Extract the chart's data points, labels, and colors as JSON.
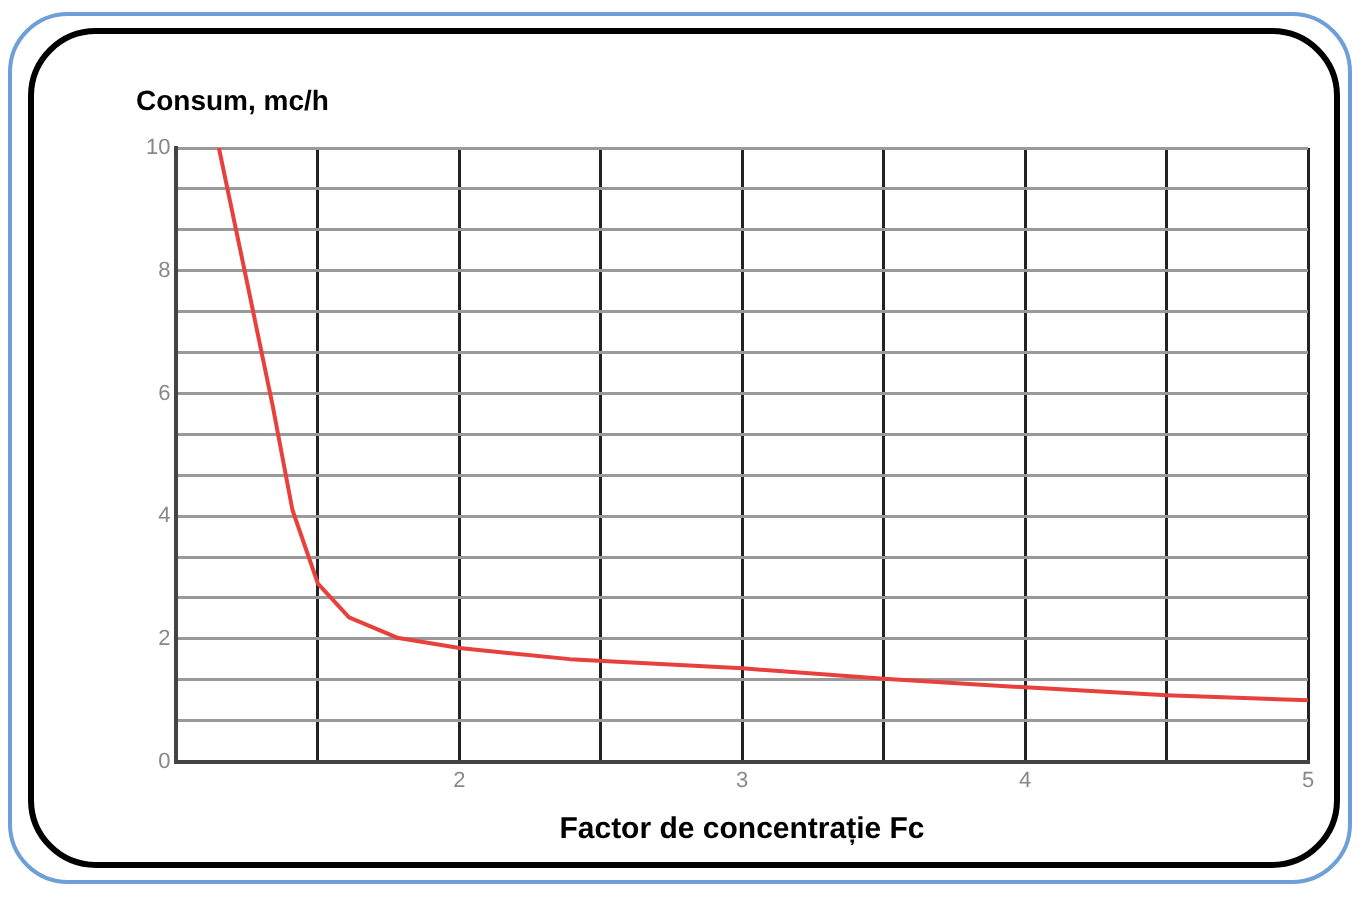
{
  "chart_data": {
    "type": "line",
    "ylabel": "Consum, mc/h",
    "xlabel": "Factor de concentrație Fc",
    "x": [
      1.15,
      1.25,
      1.34,
      1.41,
      1.5,
      1.61,
      1.78,
      2,
      2.39,
      2.88,
      3,
      3.5,
      4,
      4.5,
      5
    ],
    "series": [
      {
        "color": "#e8403c",
        "values": [
          10,
          7.8,
          5.8,
          4.1,
          2.9,
          2.35,
          2.02,
          1.85,
          1.67,
          1.55,
          1.52,
          1.35,
          1.21,
          1.08,
          1.0
        ]
      }
    ],
    "xlim": [
      1,
      5
    ],
    "xticks": [
      {
        "value": 1.5,
        "label": null
      },
      2,
      {
        "value": 2.5,
        "label": null
      },
      3,
      {
        "value": 3.5,
        "label": null
      },
      4,
      {
        "value": 4.5,
        "label": null
      },
      5
    ],
    "ylim": [
      0,
      10
    ],
    "yticks": [
      0,
      {
        "value": 0.667,
        "label": null
      },
      {
        "value": 1.333,
        "label": null
      },
      2,
      {
        "value": 2.667,
        "label": null
      },
      {
        "value": 3.333,
        "label": null
      },
      4,
      {
        "value": 4.667,
        "label": null
      },
      {
        "value": 5.333,
        "label": null
      },
      6,
      {
        "value": 6.667,
        "label": null
      },
      {
        "value": 7.333,
        "label": null
      },
      8,
      {
        "value": 8.667,
        "label": null
      },
      {
        "value": 9.333,
        "label": null
      },
      10
    ],
    "grid": true,
    "legend": false,
    "marker": "none",
    "line_style": "solid"
  }
}
